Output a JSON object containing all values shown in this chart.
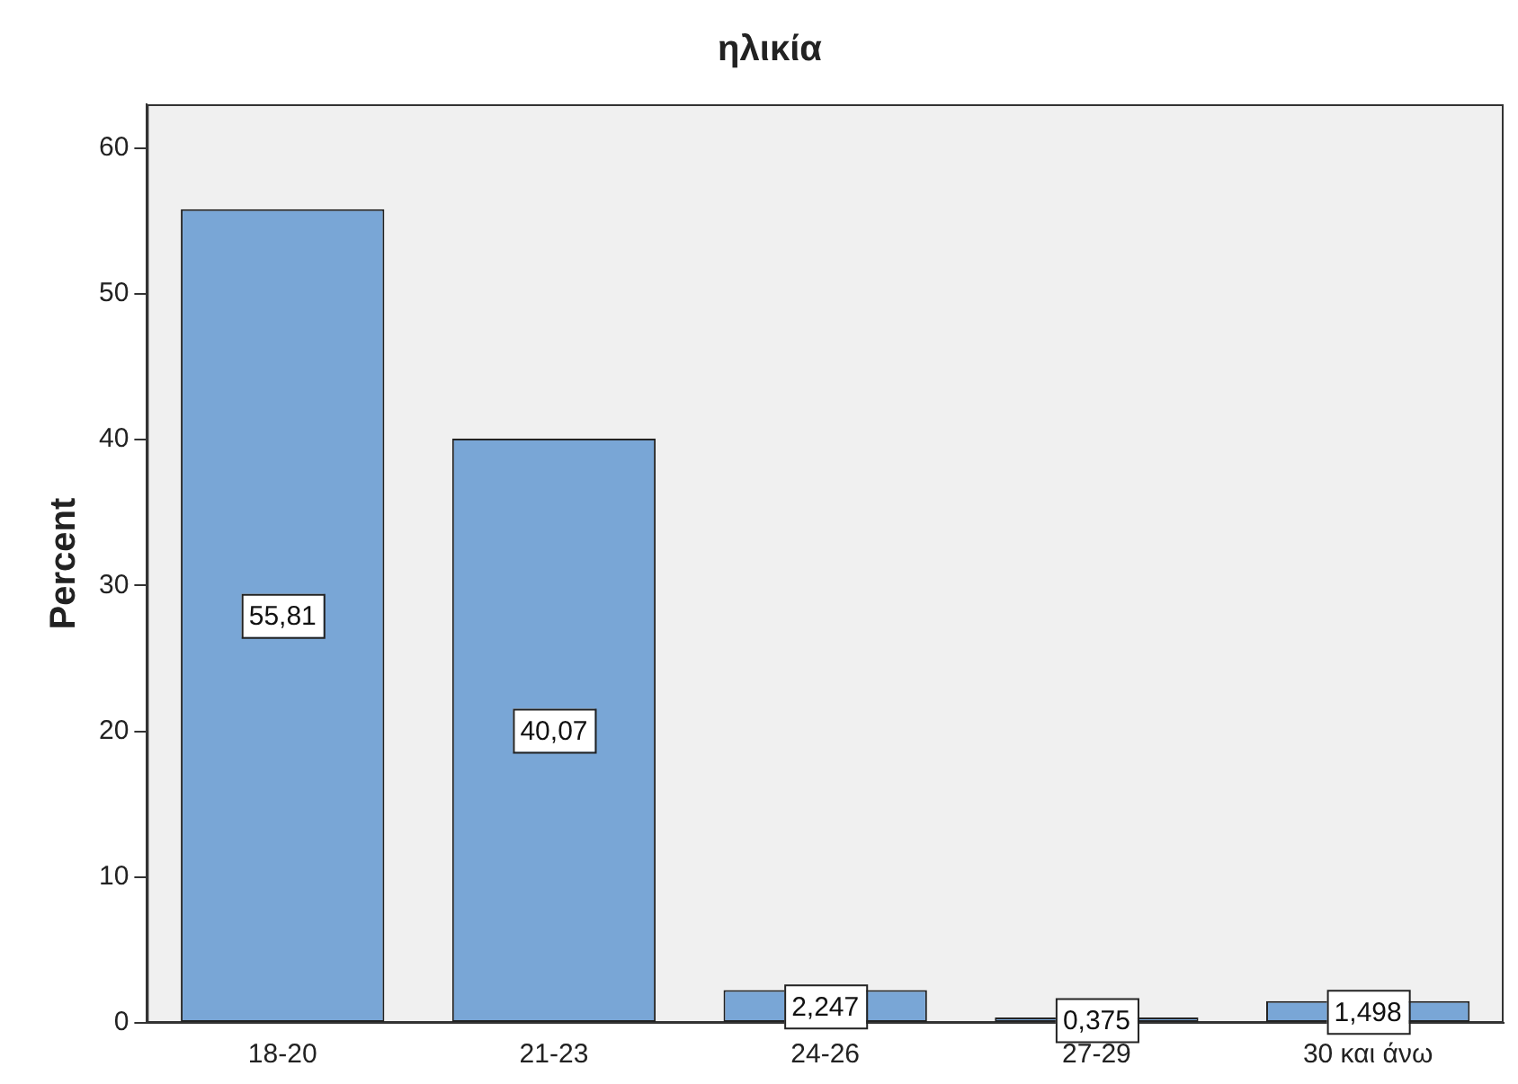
{
  "chart_data": {
    "type": "bar",
    "title": "ηλικία",
    "ylabel": "Percent",
    "categories": [
      "18-20",
      "21-23",
      "24-26",
      "27-29",
      "30 και άνω"
    ],
    "values": [
      55.81,
      40.07,
      2.247,
      0.375,
      1.498
    ],
    "value_labels": [
      "55,81",
      "40,07",
      "2,247",
      "0,375",
      "1,498"
    ],
    "color": "#79a6d6",
    "ylim": [
      0,
      63
    ],
    "yticks": [
      0,
      10,
      20,
      30,
      40,
      50,
      60
    ],
    "grid": false,
    "legend": false
  }
}
